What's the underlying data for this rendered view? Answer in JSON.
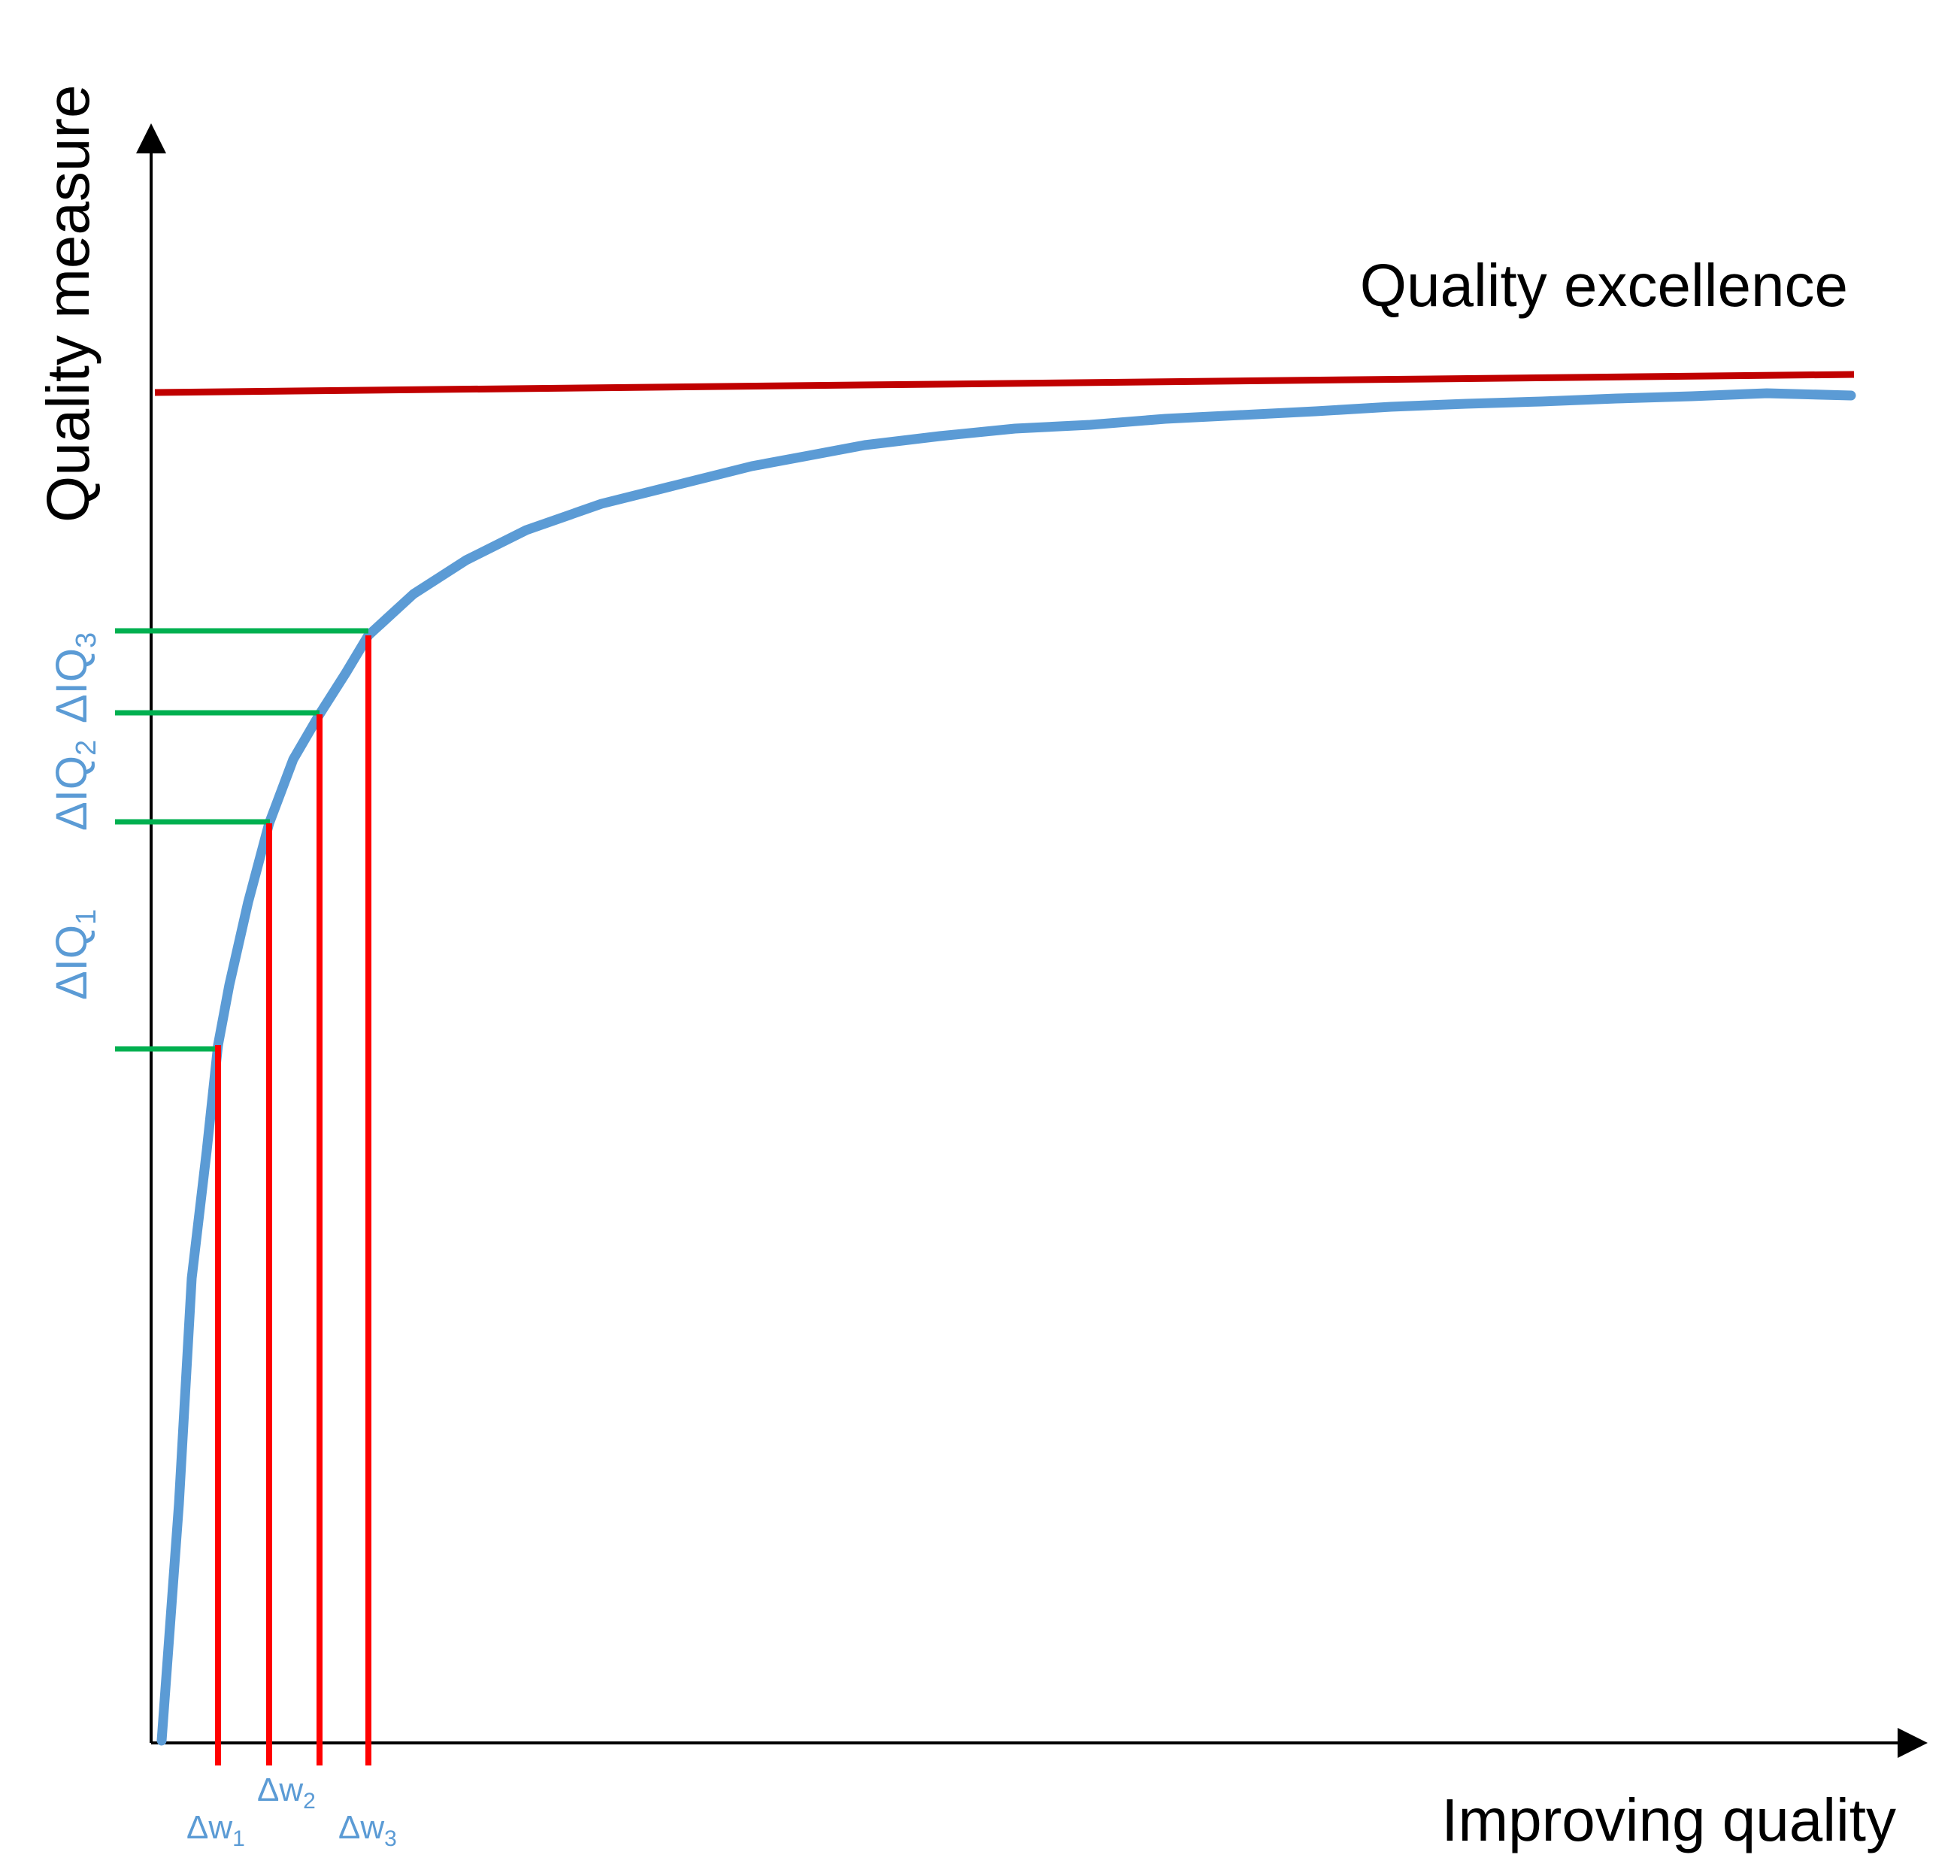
{
  "labels": {
    "y_axis": "Quality measure",
    "x_axis": "Improving quality",
    "excellence": "Quality excellence"
  },
  "intervals": [
    {
      "base": "ΔIQ",
      "sub": "1"
    },
    {
      "base": "ΔIQ",
      "sub": "2"
    },
    {
      "base": "ΔIQ",
      "sub": "3"
    }
  ],
  "steps": [
    {
      "base": "Δw",
      "sub": "1"
    },
    {
      "base": "Δw",
      "sub": "2"
    },
    {
      "base": "Δw",
      "sub": "3"
    }
  ],
  "colors": {
    "axis": "#000000",
    "curve": "#5b9bd5",
    "excellence_line": "#c00000",
    "drop_lines": "#ff0000",
    "level_lines": "#00b050",
    "label_text": "#5b9bd5"
  }
}
